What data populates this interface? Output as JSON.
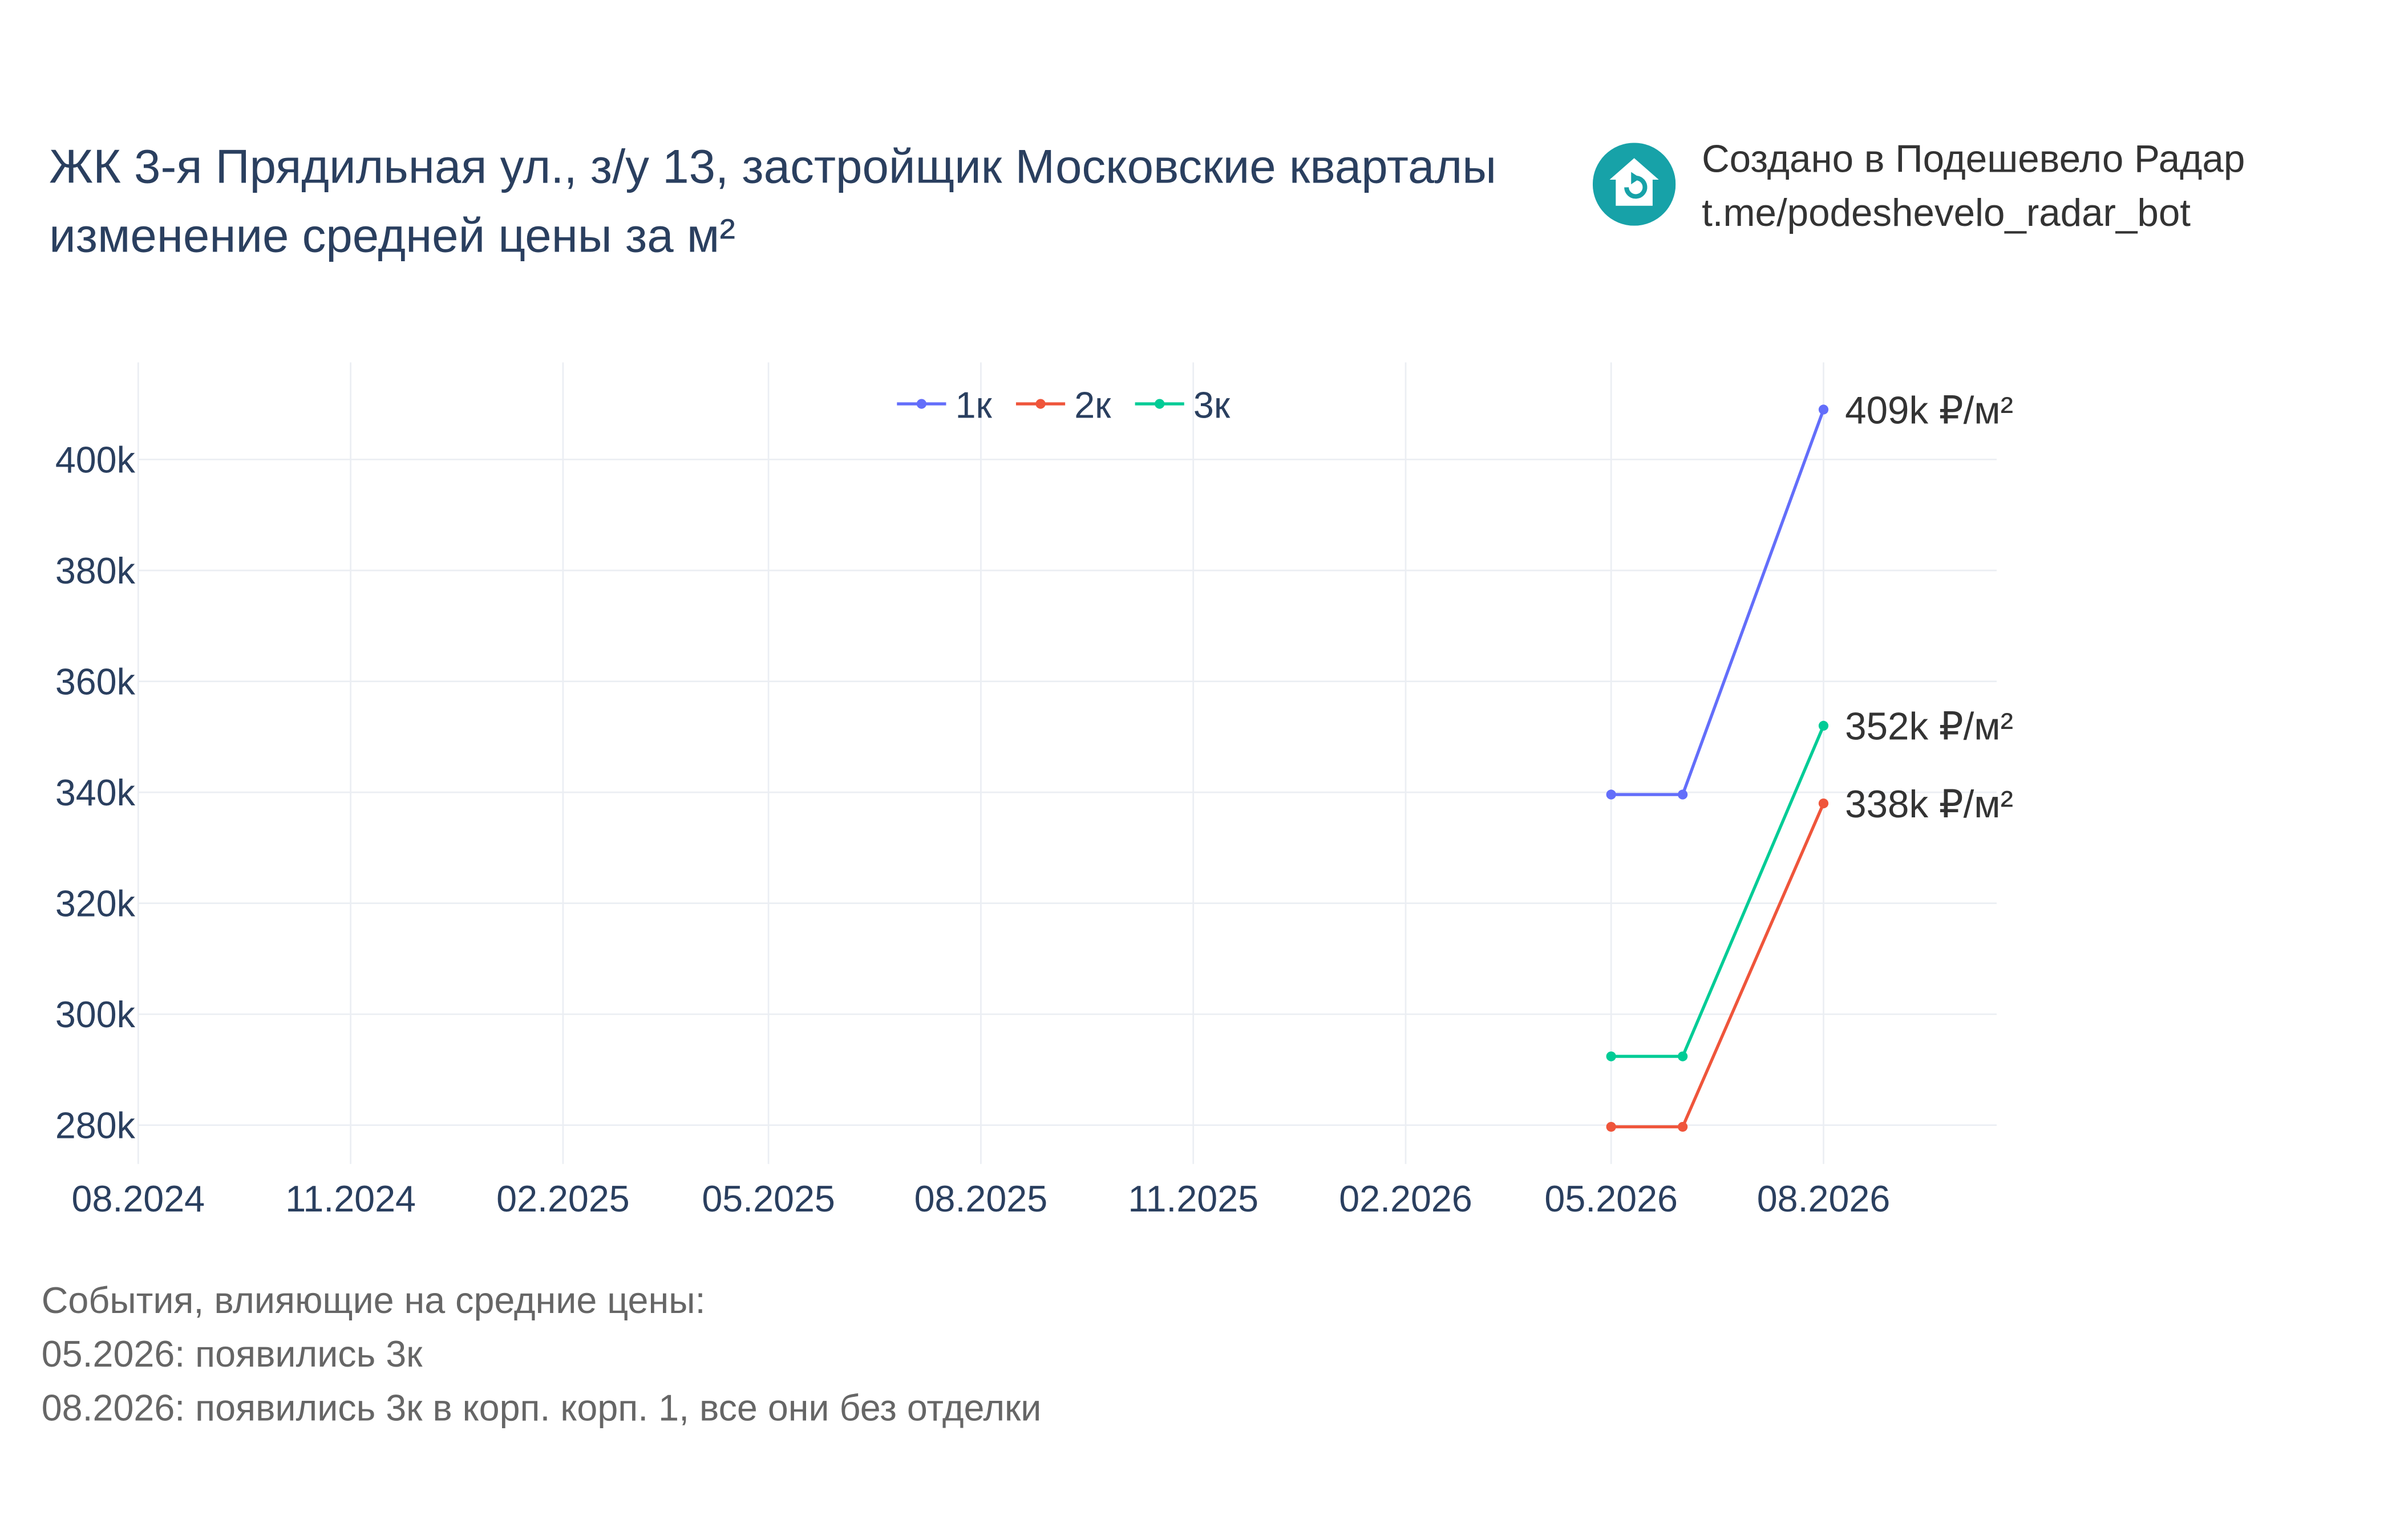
{
  "title": {
    "line1": "ЖК 3-я Прядильная ул., з/у 13, застройщик Московские кварталы",
    "line2": "изменение средней цены за м²"
  },
  "brand": {
    "line1": "Создано в Подешевело Радар",
    "line2": "t.me/podeshevelo_radar_bot",
    "logo_icon": "house-refresh-icon",
    "logo_color": "#17a2a8"
  },
  "events": {
    "heading": "События, влияющие на средние цены:",
    "items": [
      "05.2026: появились 3к",
      "08.2026: появились 3к в корп. корп. 1, все они без отделки"
    ]
  },
  "chart_data": {
    "type": "line",
    "x_ticks": [
      "08.2024",
      "11.2024",
      "02.2025",
      "05.2025",
      "08.2025",
      "11.2025",
      "02.2026",
      "05.2026",
      "08.2026"
    ],
    "y_ticks": [
      280000,
      300000,
      320000,
      340000,
      360000,
      380000,
      400000
    ],
    "y_tick_labels": [
      "280k",
      "300k",
      "320k",
      "340k",
      "360k",
      "380k",
      "400k"
    ],
    "xlim": [
      "2024-08-01",
      "2026-10-15"
    ],
    "ylim": [
      273000,
      417500
    ],
    "grid": true,
    "legend_position": "top-center",
    "series": [
      {
        "name": "1к",
        "color": "#636efa",
        "x": [
          "2026-05-01",
          "2026-06-01",
          "2026-08-01"
        ],
        "values": [
          339600,
          339600,
          409000
        ],
        "end_label": "409k ₽/м²"
      },
      {
        "name": "2к",
        "color": "#ef553b",
        "x": [
          "2026-05-01",
          "2026-06-01",
          "2026-08-01"
        ],
        "values": [
          279700,
          279700,
          338000
        ],
        "end_label": "338k ₽/м²"
      },
      {
        "name": "3к",
        "color": "#00cc96",
        "x": [
          "2026-05-01",
          "2026-06-01",
          "2026-08-01"
        ],
        "values": [
          292400,
          292400,
          352000
        ],
        "end_label": "352k ₽/м²"
      }
    ]
  }
}
